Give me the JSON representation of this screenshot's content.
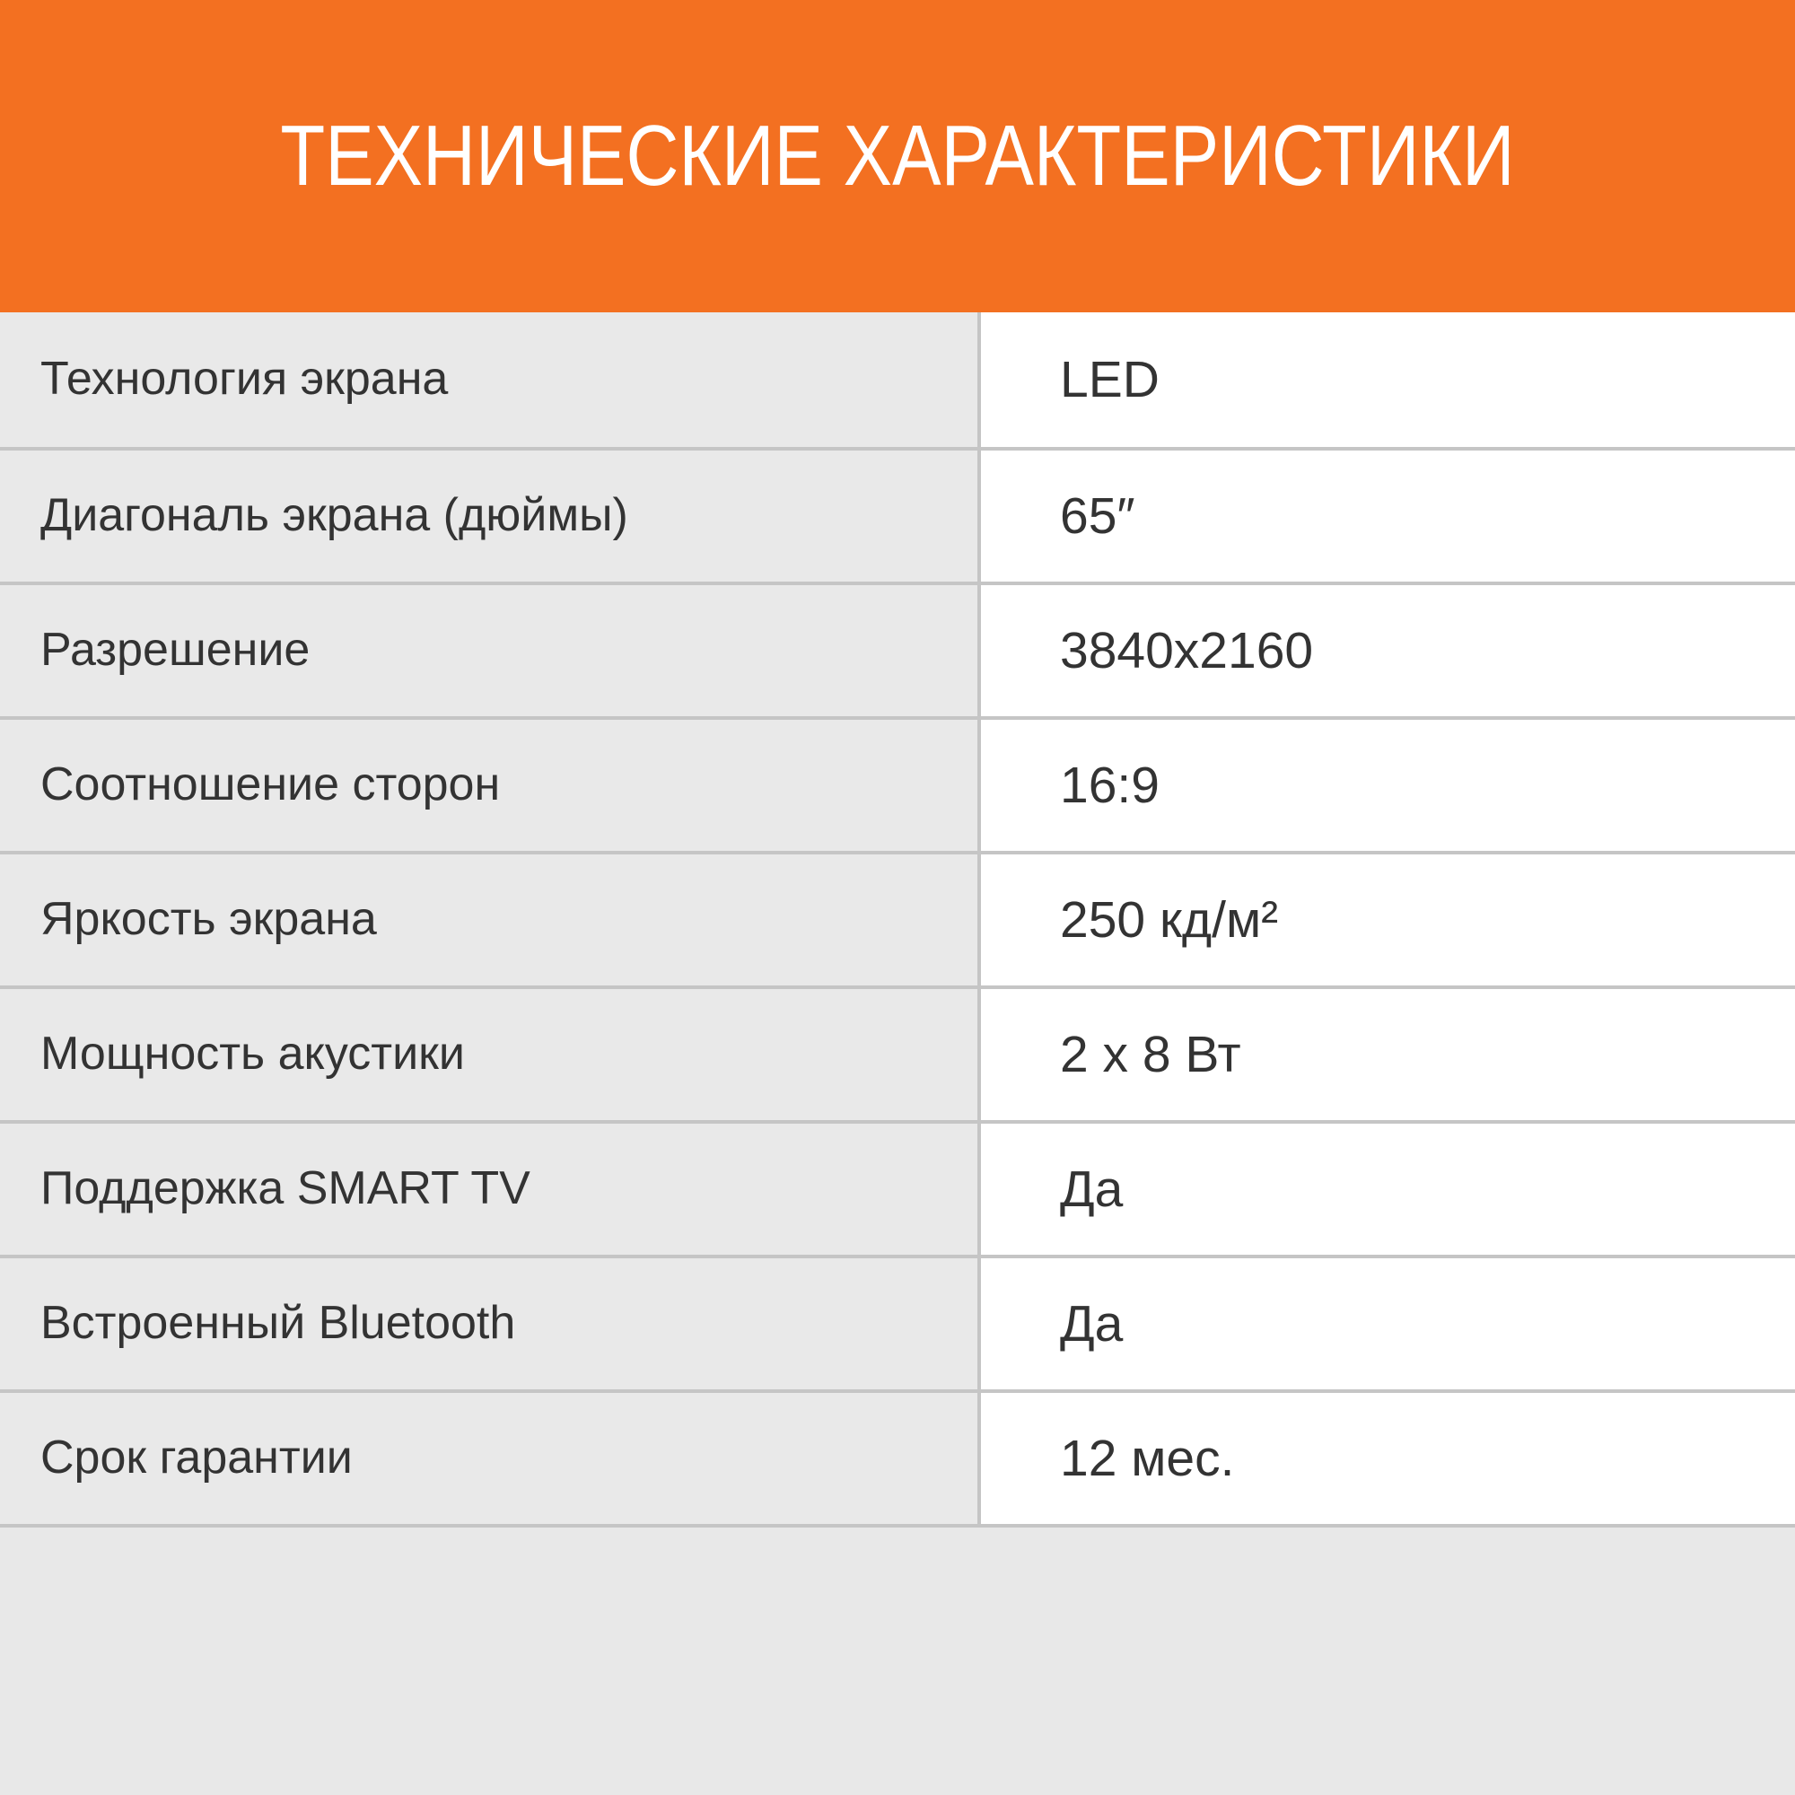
{
  "header": {
    "title": "ТЕХНИЧЕСКИЕ ХАРАКТЕРИСТИКИ"
  },
  "table": {
    "rows": [
      {
        "label": "Технология экрана",
        "value": "LED"
      },
      {
        "label": "Диагональ экрана (дюймы)",
        "value": "65″"
      },
      {
        "label": "Разрешение",
        "value": "3840x2160"
      },
      {
        "label": "Соотношение сторон",
        "value": "16:9"
      },
      {
        "label": "Яркость экрана",
        "value": "250 кд/м²"
      },
      {
        "label": "Мощность акустики",
        "value": "2 x 8 Вт"
      },
      {
        "label": "Поддержка SMART TV",
        "value": "Да"
      },
      {
        "label": "Встроенный Bluetooth",
        "value": "Да"
      },
      {
        "label": "Срок гарантии",
        "value": "12 мес."
      }
    ]
  },
  "colors": {
    "accent": "#f37021",
    "grid": "#c5c5c5",
    "cell_bg": "#e9e9e9",
    "value_bg": "#ffffff",
    "footer_bg": "#e8e8e8",
    "label_text": "#333333",
    "title_text": "#ffffff"
  }
}
